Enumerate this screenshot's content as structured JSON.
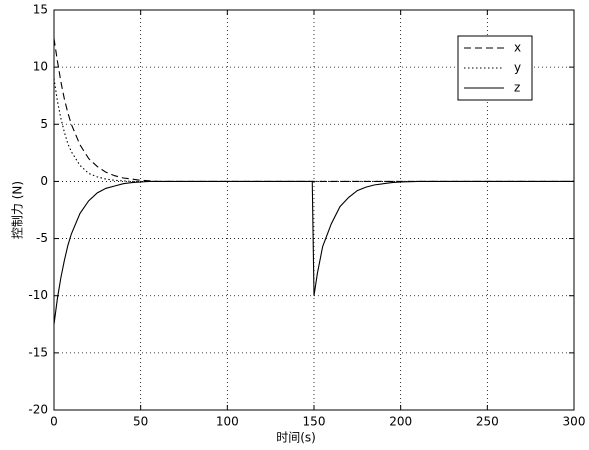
{
  "chart_data": {
    "type": "line",
    "xlabel": "时间(s)",
    "ylabel": "控制力 (N)",
    "x": [
      0,
      2,
      4,
      6,
      8,
      10,
      15,
      20,
      25,
      30,
      35,
      40,
      45,
      50,
      55,
      60,
      70,
      100,
      149,
      150,
      152,
      155,
      160,
      165,
      170,
      175,
      180,
      185,
      190,
      195,
      200,
      210,
      250,
      300
    ],
    "series": [
      {
        "name": "x",
        "color": "#000000",
        "style": "dashed",
        "values": [
          12.5,
          10.5,
          8.7,
          7.2,
          6.0,
          5.0,
          3.2,
          2.0,
          1.3,
          0.8,
          0.5,
          0.3,
          0.2,
          0.1,
          0.05,
          0,
          0,
          0,
          0,
          0,
          0,
          0,
          0,
          0,
          0,
          0,
          0,
          0,
          0,
          0,
          0,
          0,
          0,
          0
        ]
      },
      {
        "name": "y",
        "color": "#000000",
        "style": "dotted",
        "values": [
          9,
          7.0,
          5.5,
          4.3,
          3.3,
          2.6,
          1.4,
          0.7,
          0.4,
          0.2,
          0.1,
          0.05,
          0,
          0,
          0,
          0,
          0,
          0,
          0,
          0,
          0,
          0,
          0,
          0,
          0,
          0,
          0,
          0,
          0,
          0,
          0,
          0,
          0,
          0
        ]
      },
      {
        "name": "z",
        "color": "#000000",
        "style": "solid",
        "values": [
          -12.5,
          -10.2,
          -8.4,
          -6.9,
          -5.6,
          -4.6,
          -2.8,
          -1.7,
          -1.0,
          -0.6,
          -0.4,
          -0.2,
          -0.1,
          -0.05,
          0,
          0,
          0,
          0,
          0,
          -10,
          -8.0,
          -5.7,
          -3.7,
          -2.2,
          -1.4,
          -0.8,
          -0.5,
          -0.3,
          -0.2,
          -0.1,
          -0.05,
          0,
          0,
          0
        ]
      }
    ],
    "xlim": [
      0,
      300
    ],
    "xticks": [
      0,
      50,
      100,
      150,
      200,
      250,
      300
    ],
    "ylim": [
      -20,
      15
    ],
    "yticks": [
      -20,
      -15,
      -10,
      -5,
      0,
      5,
      10,
      15
    ],
    "grid": true,
    "legend": "top-right"
  }
}
